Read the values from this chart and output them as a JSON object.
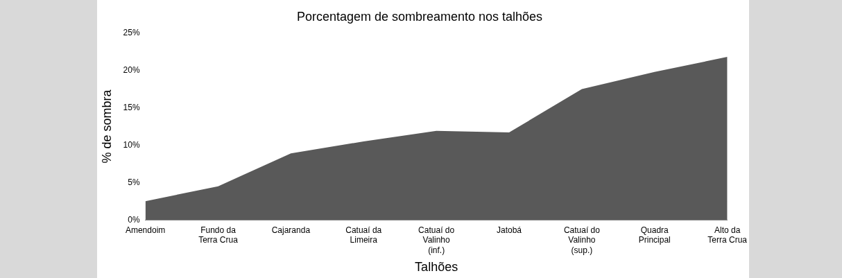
{
  "chart_data": {
    "type": "area",
    "title": "Porcentagem de sombreamento nos talhões",
    "xlabel": "Talhões",
    "ylabel": "% de sombra",
    "categories": [
      "Amendoim",
      "Fundo da Terra Crua",
      "Cajaranda",
      "Catuaí da Limeira",
      "Catuaí do Valinho (inf.)",
      "Jatobá",
      "Catuaí do Valinho (sup.)",
      "Quadra Principal",
      "Alto da Terra Crua"
    ],
    "values": [
      2.5,
      4.5,
      8.9,
      10.5,
      11.9,
      11.7,
      17.5,
      19.8,
      21.8
    ],
    "color": "#595959",
    "ylim": [
      0,
      25
    ],
    "yticks": [
      {
        "value": 0,
        "label": "0%"
      },
      {
        "value": 5,
        "label": "5%"
      },
      {
        "value": 10,
        "label": "10%"
      },
      {
        "value": 15,
        "label": "15%"
      },
      {
        "value": 20,
        "label": "20%"
      },
      {
        "value": 25,
        "label": "25%"
      }
    ],
    "grid": false,
    "legend": false
  }
}
